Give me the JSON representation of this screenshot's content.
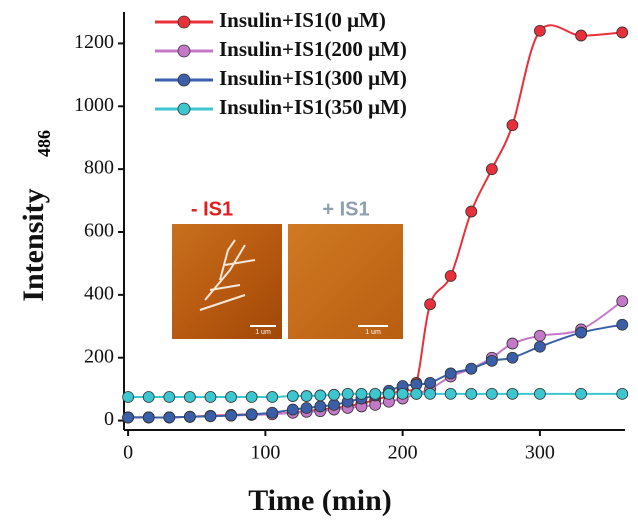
{
  "chart_data": {
    "type": "scatter",
    "x_label": "Time (min)",
    "y_label": "Intensity",
    "y_label_subscript": "486",
    "x": [
      0,
      15,
      30,
      45,
      60,
      75,
      90,
      105,
      120,
      130,
      140,
      150,
      160,
      170,
      180,
      190,
      200,
      210,
      220,
      235,
      250,
      265,
      280,
      300,
      330,
      360
    ],
    "series": [
      {
        "name": "Insulin+IS1(0 μM)",
        "color": "#e8303a",
        "values": [
          10,
          10,
          10,
          12,
          15,
          18,
          20,
          22,
          25,
          30,
          35,
          40,
          45,
          55,
          65,
          80,
          100,
          120,
          370,
          460,
          665,
          800,
          940,
          1240,
          1225,
          1235
        ]
      },
      {
        "name": "Insulin+IS1(200 μM)",
        "color": "#c478c8",
        "values": [
          10,
          10,
          10,
          12,
          14,
          16,
          18,
          20,
          25,
          28,
          30,
          35,
          40,
          45,
          50,
          60,
          70,
          85,
          100,
          140,
          165,
          200,
          245,
          270,
          290,
          380
        ]
      },
      {
        "name": "Insulin+IS1(300 μM)",
        "color": "#3a5fa8",
        "values": [
          10,
          10,
          10,
          12,
          14,
          16,
          20,
          25,
          35,
          40,
          45,
          50,
          60,
          70,
          80,
          95,
          110,
          115,
          120,
          150,
          165,
          190,
          200,
          235,
          280,
          305
        ]
      },
      {
        "name": "Insulin+IS1(350 μM)",
        "color": "#3cc6cf",
        "values": [
          75,
          75,
          75,
          75,
          75,
          75,
          75,
          75,
          78,
          78,
          80,
          82,
          85,
          85,
          85,
          85,
          85,
          85,
          85,
          85,
          85,
          85,
          85,
          85,
          85,
          85
        ]
      }
    ],
    "xlim": [
      -3,
      362
    ],
    "ylim": [
      -30,
      1300
    ],
    "xticks": [
      0,
      100,
      200,
      300
    ],
    "yticks": [
      0,
      200,
      400,
      600,
      800,
      1000,
      1200
    ],
    "legend": "upper left",
    "inset": {
      "labels": [
        {
          "text": "- IS1",
          "color": "#e02020"
        },
        {
          "text": "+ IS1",
          "color": "#8e9fb2"
        }
      ],
      "scale_bar": "1 um"
    }
  }
}
